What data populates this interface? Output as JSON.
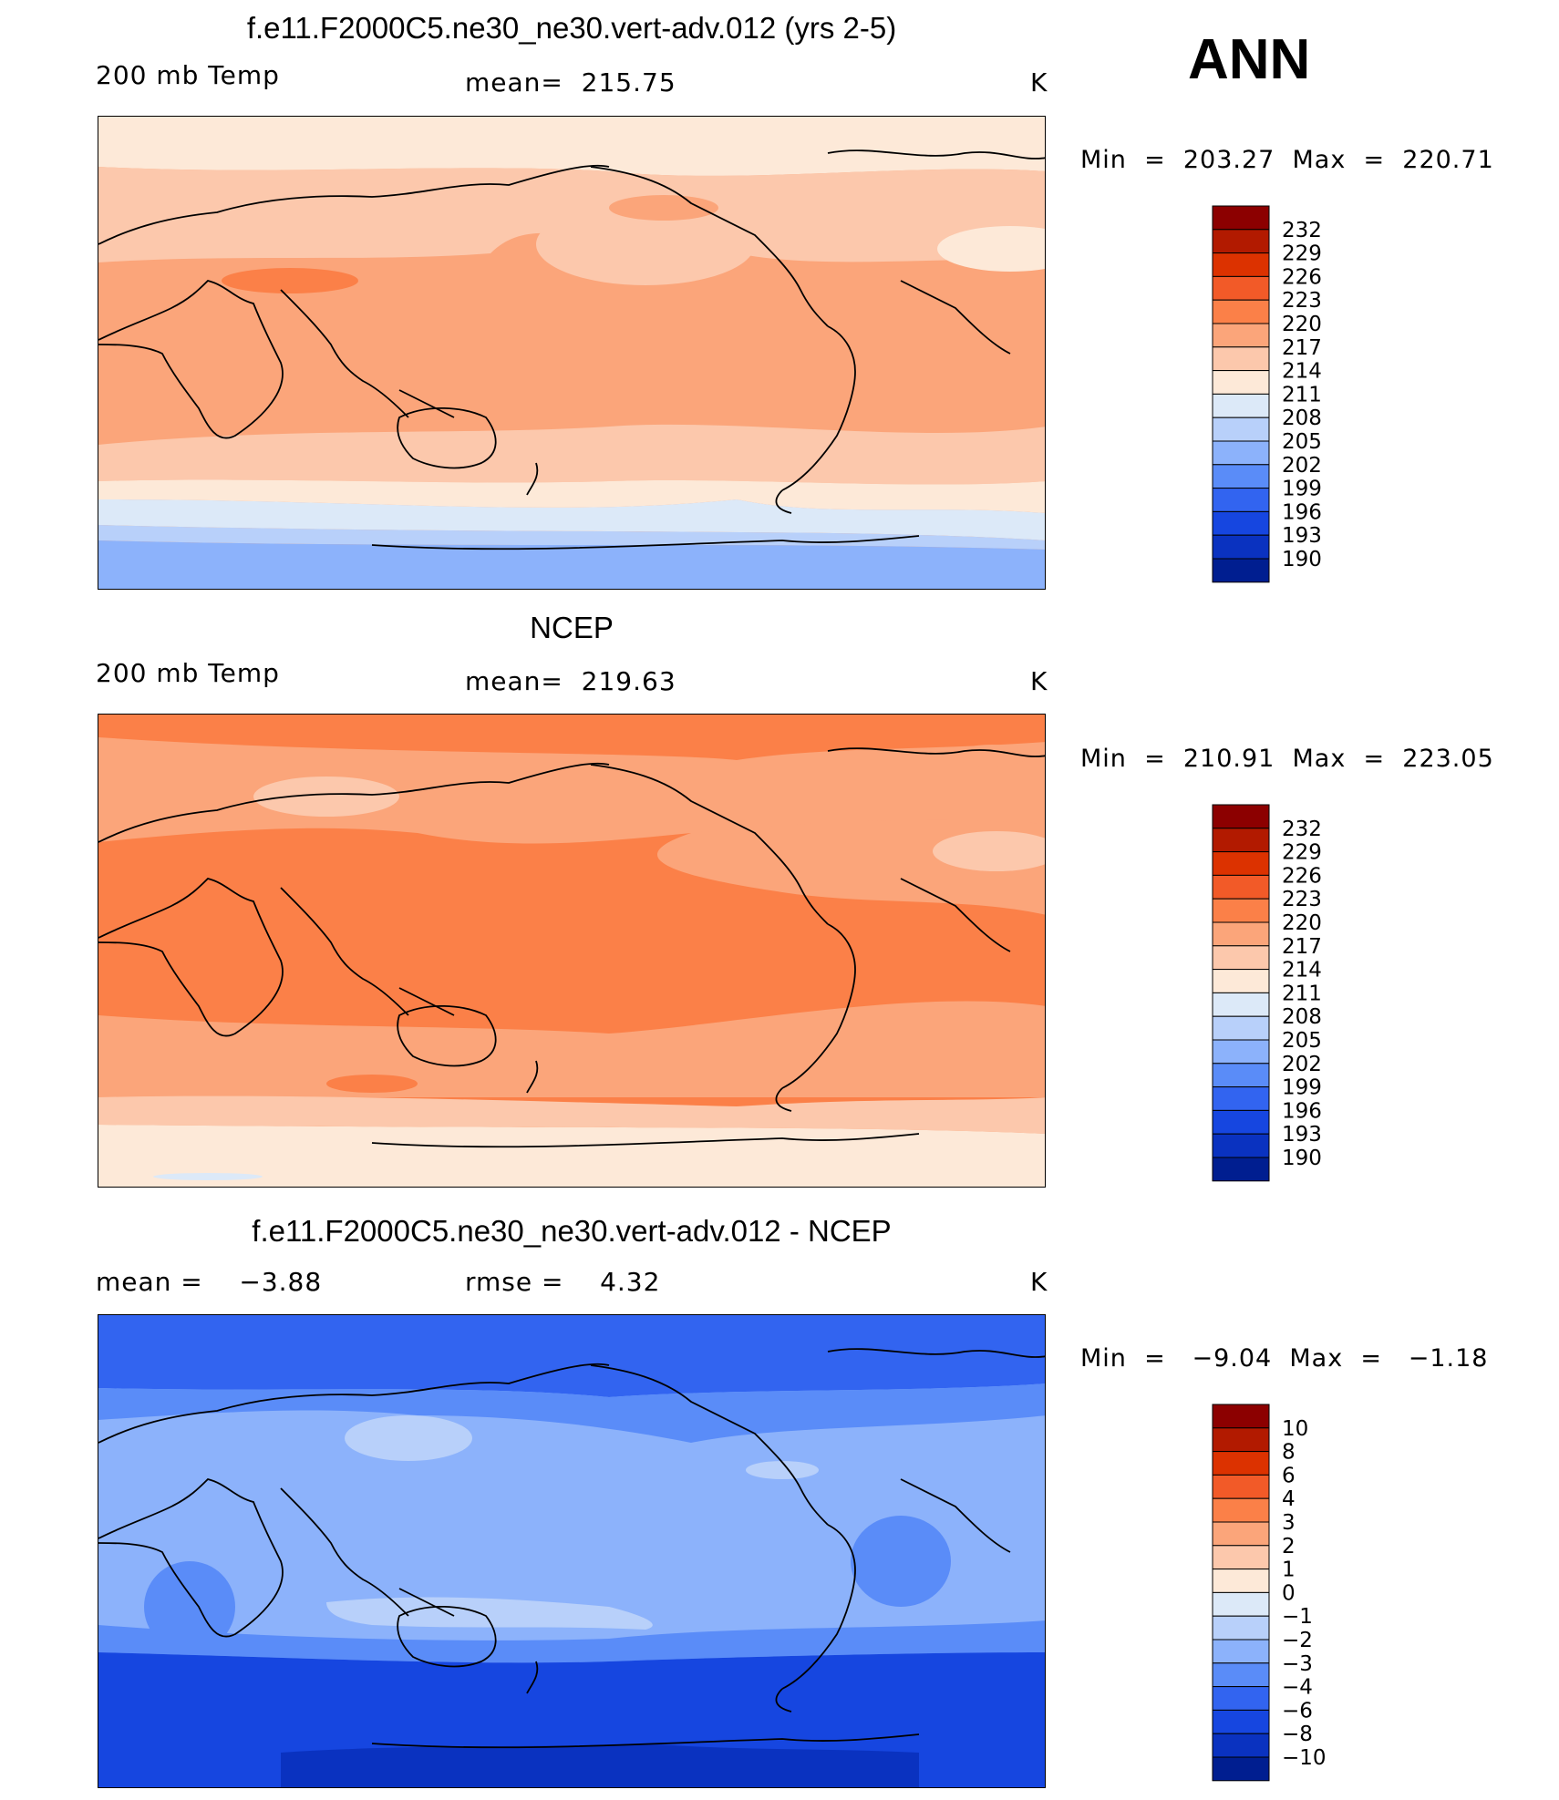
{
  "season": "ANN",
  "panels": [
    {
      "title": "f.e11.F2000C5.ne30_ne30.vert-adv.012 (yrs 2-5)",
      "left_label": "200 mb Temp",
      "mid_label": "mean=  215.75",
      "units": "K",
      "minmax": "Min  =  203.27  Max  =  220.71",
      "colorbar_levels": [
        "232",
        "229",
        "226",
        "223",
        "220",
        "217",
        "214",
        "211",
        "208",
        "205",
        "202",
        "199",
        "196",
        "193",
        "190"
      ],
      "colorbar_colors": [
        "#8c0000",
        "#b21a00",
        "#dc3200",
        "#f25a28",
        "#fb8048",
        "#fba57a",
        "#fcc8ac",
        "#fde9d8",
        "#dce9f8",
        "#b8d0fa",
        "#8cb2fb",
        "#5a8cf8",
        "#3264f0",
        "#1646e0",
        "#0a32c0",
        "#001e90"
      ],
      "chart_data": {
        "type": "heatmap",
        "title": "f.e11.F2000C5.ne30_ne30.vert-adv.012 (yrs 2-5)",
        "variable": "200 mb Temp",
        "units": "K",
        "mean": 215.75,
        "min": 203.27,
        "max": 220.71,
        "zonal_bands": [
          {
            "lat_range": [
              65,
              90
            ],
            "value_range": [
              214,
              217
            ]
          },
          {
            "lat_range": [
              35,
              65
            ],
            "value_range": [
              217,
              220
            ]
          },
          {
            "lat_range": [
              -25,
              35
            ],
            "value_range": [
              217,
              220
            ]
          },
          {
            "lat_range": [
              -45,
              -25
            ],
            "value_range": [
              214,
              217
            ]
          },
          {
            "lat_range": [
              -60,
              -45
            ],
            "value_range": [
              211,
              214
            ]
          },
          {
            "lat_range": [
              -65,
              -60
            ],
            "value_range": [
              208,
              211
            ]
          },
          {
            "lat_range": [
              -90,
              -65
            ],
            "value_range": [
              202,
              208
            ]
          }
        ]
      }
    },
    {
      "title": "NCEP",
      "left_label": "200 mb Temp",
      "mid_label": "mean=  219.63",
      "units": "K",
      "minmax": "Min  =  210.91  Max  =  223.05",
      "colorbar_levels": [
        "232",
        "229",
        "226",
        "223",
        "220",
        "217",
        "214",
        "211",
        "208",
        "205",
        "202",
        "199",
        "196",
        "193",
        "190"
      ],
      "colorbar_colors": [
        "#8c0000",
        "#b21a00",
        "#dc3200",
        "#f25a28",
        "#fb8048",
        "#fba57a",
        "#fcc8ac",
        "#fde9d8",
        "#dce9f8",
        "#b8d0fa",
        "#8cb2fb",
        "#5a8cf8",
        "#3264f0",
        "#1646e0",
        "#0a32c0",
        "#001e90"
      ],
      "chart_data": {
        "type": "heatmap",
        "title": "NCEP",
        "variable": "200 mb Temp",
        "units": "K",
        "mean": 219.63,
        "min": 210.91,
        "max": 223.05,
        "zonal_bands": [
          {
            "lat_range": [
              70,
              90
            ],
            "value_range": [
              220,
              223
            ]
          },
          {
            "lat_range": [
              35,
              70
            ],
            "value_range": [
              217,
              220
            ]
          },
          {
            "lat_range": [
              -30,
              35
            ],
            "value_range": [
              220,
              223
            ]
          },
          {
            "lat_range": [
              -60,
              -30
            ],
            "value_range": [
              217,
              220
            ]
          },
          {
            "lat_range": [
              -75,
              -60
            ],
            "value_range": [
              214,
              217
            ]
          },
          {
            "lat_range": [
              -90,
              -75
            ],
            "value_range": [
              211,
              214
            ]
          }
        ]
      }
    },
    {
      "title": "f.e11.F2000C5.ne30_ne30.vert-adv.012 - NCEP",
      "left_label": "mean =    −3.88",
      "mid_label": "rmse =    4.32",
      "units": "K",
      "minmax": "Min  =   −9.04  Max  =   −1.18",
      "colorbar_levels": [
        "10",
        "8",
        "6",
        "4",
        "3",
        "2",
        "1",
        "0",
        "−1",
        "−2",
        "−3",
        "−4",
        "−6",
        "−8",
        "−10"
      ],
      "colorbar_colors": [
        "#8c0000",
        "#b21a00",
        "#dc3200",
        "#f25a28",
        "#fb8048",
        "#fba57a",
        "#fcc8ac",
        "#fde9d8",
        "#dce9f8",
        "#b8d0fa",
        "#8cb2fb",
        "#5a8cf8",
        "#3264f0",
        "#1646e0",
        "#0a32c0",
        "#001e90"
      ],
      "chart_data": {
        "type": "heatmap",
        "title": "f.e11.F2000C5.ne30_ne30.vert-adv.012 - NCEP",
        "units": "K",
        "mean": -3.88,
        "rmse": 4.32,
        "min": -9.04,
        "max": -1.18,
        "zonal_bands": [
          {
            "lat_range": [
              70,
              90
            ],
            "value_range": [
              -6,
              -4
            ]
          },
          {
            "lat_range": [
              40,
              70
            ],
            "value_range": [
              -3,
              -2
            ]
          },
          {
            "lat_range": [
              -25,
              40
            ],
            "value_range": [
              -4,
              -3
            ]
          },
          {
            "lat_range": [
              -40,
              -25
            ],
            "value_range": [
              -3,
              -2
            ]
          },
          {
            "lat_range": [
              -55,
              -40
            ],
            "value_range": [
              -4,
              -3
            ]
          },
          {
            "lat_range": [
              -75,
              -55
            ],
            "value_range": [
              -6,
              -4
            ]
          },
          {
            "lat_range": [
              -90,
              -75
            ],
            "value_range": [
              -8,
              -6
            ]
          }
        ]
      }
    }
  ]
}
